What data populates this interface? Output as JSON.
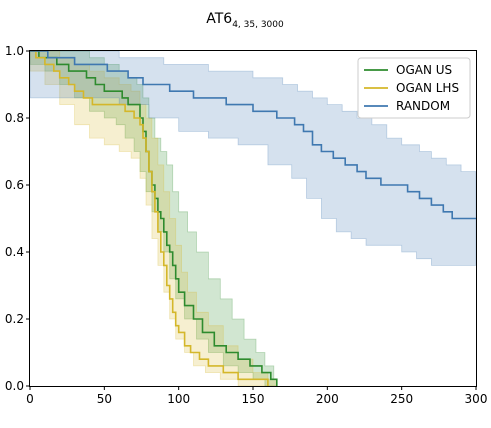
{
  "chart_data": {
    "type": "line",
    "title": {
      "base": "AT6",
      "subscript": "4, 35, 3000"
    },
    "xlabel": "",
    "ylabel": "",
    "xlim": [
      0,
      300
    ],
    "ylim": [
      0,
      1.0
    ],
    "xticks": [
      0,
      50,
      100,
      150,
      200,
      250,
      300
    ],
    "yticks": [
      0.0,
      0.2,
      0.4,
      0.6,
      0.8,
      1.0
    ],
    "xtick_labels": [
      "0",
      "50",
      "100",
      "150",
      "200",
      "250",
      "300"
    ],
    "ytick_labels": [
      "0.0",
      "0.2",
      "0.4",
      "0.6",
      "0.8",
      "1.0"
    ],
    "grid": false,
    "legend_position": "top-right",
    "series": [
      {
        "name": "OGAN US",
        "color": "#2e8b2e",
        "step": true,
        "points": [
          [
            0,
            1.0
          ],
          [
            6,
            0.98
          ],
          [
            12,
            0.98
          ],
          [
            18,
            0.96
          ],
          [
            26,
            0.94
          ],
          [
            32,
            0.94
          ],
          [
            38,
            0.92
          ],
          [
            44,
            0.9
          ],
          [
            50,
            0.88
          ],
          [
            58,
            0.88
          ],
          [
            62,
            0.86
          ],
          [
            66,
            0.84
          ],
          [
            70,
            0.84
          ],
          [
            74,
            0.8
          ],
          [
            76,
            0.76
          ],
          [
            78,
            0.7
          ],
          [
            80,
            0.64
          ],
          [
            82,
            0.6
          ],
          [
            84,
            0.56
          ],
          [
            86,
            0.52
          ],
          [
            88,
            0.5
          ],
          [
            90,
            0.46
          ],
          [
            92,
            0.42
          ],
          [
            94,
            0.4
          ],
          [
            96,
            0.36
          ],
          [
            98,
            0.32
          ],
          [
            100,
            0.28
          ],
          [
            104,
            0.24
          ],
          [
            110,
            0.2
          ],
          [
            116,
            0.16
          ],
          [
            124,
            0.12
          ],
          [
            132,
            0.1
          ],
          [
            140,
            0.08
          ],
          [
            148,
            0.06
          ],
          [
            156,
            0.04
          ],
          [
            162,
            0.02
          ],
          [
            166,
            0.0
          ]
        ],
        "band_upper": [
          [
            0,
            1.0
          ],
          [
            10,
            1.0
          ],
          [
            20,
            1.0
          ],
          [
            30,
            1.0
          ],
          [
            40,
            0.98
          ],
          [
            50,
            0.96
          ],
          [
            60,
            0.94
          ],
          [
            66,
            0.92
          ],
          [
            72,
            0.9
          ],
          [
            76,
            0.86
          ],
          [
            80,
            0.8
          ],
          [
            84,
            0.74
          ],
          [
            88,
            0.7
          ],
          [
            92,
            0.66
          ],
          [
            96,
            0.58
          ],
          [
            100,
            0.52
          ],
          [
            106,
            0.46
          ],
          [
            112,
            0.4
          ],
          [
            120,
            0.32
          ],
          [
            128,
            0.26
          ],
          [
            136,
            0.2
          ],
          [
            144,
            0.14
          ],
          [
            152,
            0.1
          ],
          [
            158,
            0.06
          ],
          [
            164,
            0.02
          ],
          [
            166,
            0.0
          ]
        ],
        "band_lower": [
          [
            0,
            0.96
          ],
          [
            10,
            0.94
          ],
          [
            20,
            0.9
          ],
          [
            30,
            0.86
          ],
          [
            40,
            0.82
          ],
          [
            50,
            0.8
          ],
          [
            58,
            0.78
          ],
          [
            64,
            0.74
          ],
          [
            70,
            0.7
          ],
          [
            74,
            0.64
          ],
          [
            78,
            0.58
          ],
          [
            82,
            0.52
          ],
          [
            86,
            0.46
          ],
          [
            90,
            0.4
          ],
          [
            94,
            0.32
          ],
          [
            98,
            0.26
          ],
          [
            104,
            0.2
          ],
          [
            112,
            0.14
          ],
          [
            120,
            0.1
          ],
          [
            130,
            0.06
          ],
          [
            140,
            0.04
          ],
          [
            150,
            0.02
          ],
          [
            158,
            0.0
          ],
          [
            166,
            0.0
          ]
        ]
      },
      {
        "name": "OGAN LHS",
        "color": "#d4b72a",
        "step": true,
        "points": [
          [
            0,
            1.0
          ],
          [
            4,
            0.98
          ],
          [
            10,
            0.96
          ],
          [
            16,
            0.94
          ],
          [
            20,
            0.92
          ],
          [
            26,
            0.9
          ],
          [
            30,
            0.88
          ],
          [
            36,
            0.86
          ],
          [
            42,
            0.84
          ],
          [
            50,
            0.84
          ],
          [
            58,
            0.84
          ],
          [
            64,
            0.82
          ],
          [
            70,
            0.8
          ],
          [
            74,
            0.78
          ],
          [
            76,
            0.74
          ],
          [
            78,
            0.7
          ],
          [
            80,
            0.64
          ],
          [
            82,
            0.58
          ],
          [
            84,
            0.52
          ],
          [
            86,
            0.46
          ],
          [
            88,
            0.4
          ],
          [
            90,
            0.36
          ],
          [
            92,
            0.3
          ],
          [
            94,
            0.26
          ],
          [
            96,
            0.22
          ],
          [
            98,
            0.18
          ],
          [
            100,
            0.16
          ],
          [
            104,
            0.12
          ],
          [
            108,
            0.1
          ],
          [
            114,
            0.08
          ],
          [
            120,
            0.06
          ],
          [
            130,
            0.04
          ],
          [
            140,
            0.02
          ],
          [
            150,
            0.02
          ],
          [
            160,
            0.0
          ]
        ],
        "band_upper": [
          [
            0,
            1.0
          ],
          [
            10,
            1.0
          ],
          [
            20,
            0.98
          ],
          [
            30,
            0.96
          ],
          [
            40,
            0.94
          ],
          [
            50,
            0.92
          ],
          [
            60,
            0.9
          ],
          [
            68,
            0.88
          ],
          [
            74,
            0.84
          ],
          [
            78,
            0.8
          ],
          [
            82,
            0.74
          ],
          [
            86,
            0.66
          ],
          [
            90,
            0.58
          ],
          [
            94,
            0.5
          ],
          [
            98,
            0.42
          ],
          [
            102,
            0.34
          ],
          [
            106,
            0.28
          ],
          [
            112,
            0.22
          ],
          [
            120,
            0.18
          ],
          [
            130,
            0.12
          ],
          [
            140,
            0.08
          ],
          [
            150,
            0.04
          ],
          [
            160,
            0.02
          ],
          [
            166,
            0.0
          ]
        ],
        "band_lower": [
          [
            0,
            0.94
          ],
          [
            10,
            0.9
          ],
          [
            20,
            0.84
          ],
          [
            30,
            0.78
          ],
          [
            40,
            0.74
          ],
          [
            50,
            0.72
          ],
          [
            60,
            0.7
          ],
          [
            68,
            0.68
          ],
          [
            74,
            0.62
          ],
          [
            78,
            0.54
          ],
          [
            82,
            0.44
          ],
          [
            86,
            0.36
          ],
          [
            90,
            0.28
          ],
          [
            94,
            0.2
          ],
          [
            98,
            0.14
          ],
          [
            104,
            0.1
          ],
          [
            110,
            0.06
          ],
          [
            118,
            0.04
          ],
          [
            128,
            0.02
          ],
          [
            140,
            0.0
          ],
          [
            166,
            0.0
          ]
        ]
      },
      {
        "name": "RANDOM",
        "color": "#3f78b0",
        "step": true,
        "points": [
          [
            0,
            1.0
          ],
          [
            6,
            1.0
          ],
          [
            12,
            0.98
          ],
          [
            22,
            0.98
          ],
          [
            30,
            0.96
          ],
          [
            40,
            0.96
          ],
          [
            52,
            0.94
          ],
          [
            66,
            0.92
          ],
          [
            76,
            0.9
          ],
          [
            94,
            0.88
          ],
          [
            110,
            0.86
          ],
          [
            132,
            0.84
          ],
          [
            150,
            0.82
          ],
          [
            166,
            0.8
          ],
          [
            178,
            0.78
          ],
          [
            184,
            0.76
          ],
          [
            190,
            0.72
          ],
          [
            196,
            0.7
          ],
          [
            204,
            0.68
          ],
          [
            212,
            0.66
          ],
          [
            220,
            0.64
          ],
          [
            226,
            0.62
          ],
          [
            236,
            0.6
          ],
          [
            254,
            0.58
          ],
          [
            262,
            0.56
          ],
          [
            270,
            0.54
          ],
          [
            278,
            0.52
          ],
          [
            284,
            0.5
          ],
          [
            300,
            0.5
          ]
        ],
        "band_upper": [
          [
            0,
            1.0
          ],
          [
            30,
            1.0
          ],
          [
            60,
            0.98
          ],
          [
            90,
            0.96
          ],
          [
            120,
            0.94
          ],
          [
            150,
            0.92
          ],
          [
            170,
            0.9
          ],
          [
            180,
            0.88
          ],
          [
            190,
            0.86
          ],
          [
            200,
            0.84
          ],
          [
            210,
            0.82
          ],
          [
            220,
            0.8
          ],
          [
            230,
            0.78
          ],
          [
            240,
            0.74
          ],
          [
            250,
            0.72
          ],
          [
            262,
            0.7
          ],
          [
            270,
            0.68
          ],
          [
            280,
            0.66
          ],
          [
            290,
            0.64
          ],
          [
            300,
            0.63
          ]
        ],
        "band_lower": [
          [
            0,
            0.86
          ],
          [
            20,
            0.86
          ],
          [
            40,
            0.86
          ],
          [
            60,
            0.84
          ],
          [
            80,
            0.8
          ],
          [
            100,
            0.76
          ],
          [
            120,
            0.74
          ],
          [
            140,
            0.72
          ],
          [
            160,
            0.66
          ],
          [
            176,
            0.62
          ],
          [
            186,
            0.56
          ],
          [
            196,
            0.5
          ],
          [
            206,
            0.46
          ],
          [
            216,
            0.44
          ],
          [
            226,
            0.42
          ],
          [
            236,
            0.42
          ],
          [
            250,
            0.4
          ],
          [
            260,
            0.38
          ],
          [
            270,
            0.36
          ],
          [
            280,
            0.36
          ],
          [
            300,
            0.36
          ]
        ]
      }
    ]
  }
}
